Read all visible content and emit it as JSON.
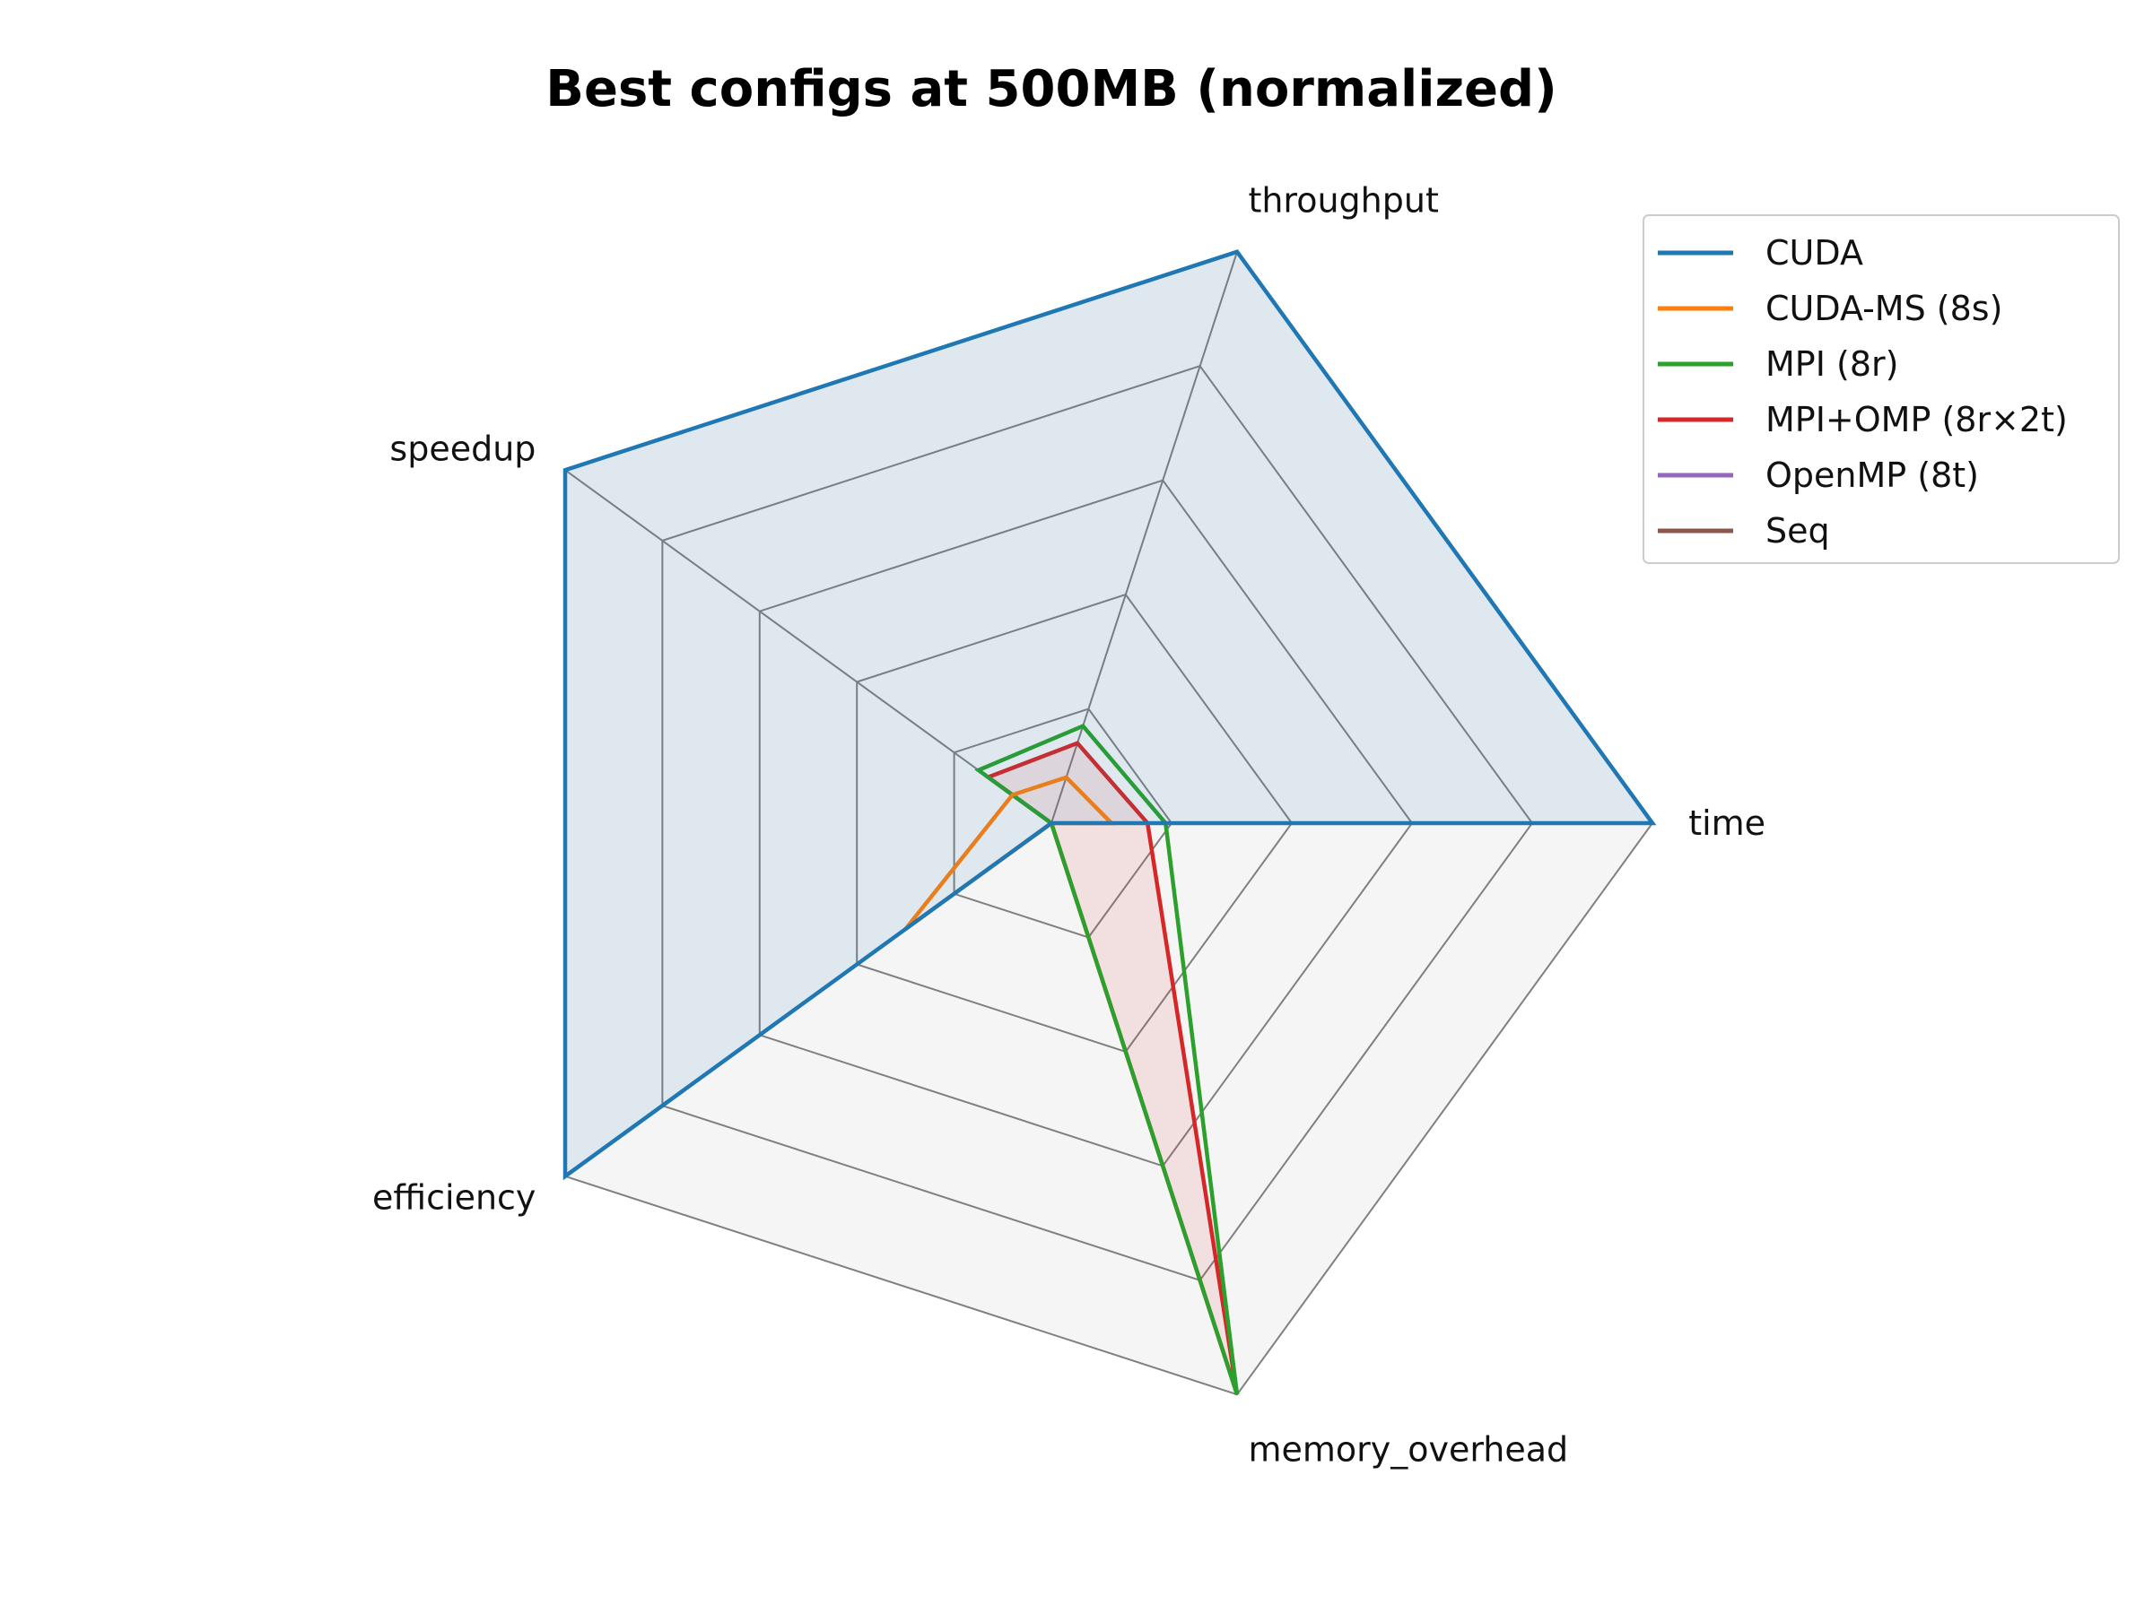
{
  "chart_data": {
    "type": "radar",
    "title": "Best configs at 500MB (normalized)",
    "axes": [
      "time",
      "throughput",
      "speedup",
      "efficiency",
      "memory_overhead"
    ],
    "rlim": [
      0,
      1
    ],
    "grid": true,
    "grid_levels": [
      0.2,
      0.4,
      0.6,
      0.8,
      1.0
    ],
    "legend_placement": "top-right",
    "series": [
      {
        "name": "CUDA",
        "color": "#1f77b4",
        "values": [
          1.0,
          1.0,
          1.0,
          1.0,
          0.0
        ],
        "fill": true
      },
      {
        "name": "CUDA-MS (8s)",
        "color": "#ff7f0e",
        "values": [
          0.1,
          0.08,
          0.08,
          0.3,
          0.0
        ],
        "fill": false
      },
      {
        "name": "MPI (8r)",
        "color": "#2ca02c",
        "values": [
          0.19,
          0.17,
          0.15,
          0.0,
          1.0
        ],
        "fill": false
      },
      {
        "name": "MPI+OMP (8r×2t)",
        "color": "#d62728",
        "values": [
          0.16,
          0.14,
          0.13,
          0.0,
          1.0
        ],
        "fill": true
      },
      {
        "name": "OpenMP (8t)",
        "color": "#9467bd",
        "values": [
          0.0,
          0.0,
          0.0,
          0.0,
          0.0
        ],
        "fill": false
      },
      {
        "name": "Seq",
        "color": "#8c564b",
        "values": [
          0.0,
          0.0,
          0.0,
          0.0,
          0.0
        ],
        "fill": false
      }
    ]
  }
}
